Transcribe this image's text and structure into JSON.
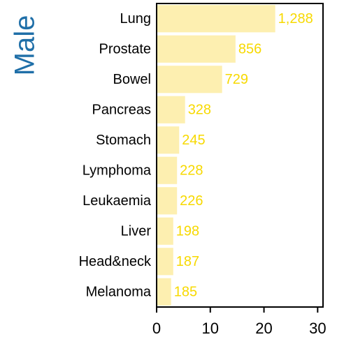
{
  "chart_data": {
    "type": "bar",
    "orientation": "horizontal",
    "y_label": "Male",
    "categories": [
      "Lung",
      "Prostate",
      "Bowel",
      "Pancreas",
      "Stomach",
      "Lymphoma",
      "Leukaemia",
      "Liver",
      "Head&neck",
      "Melanoma"
    ],
    "values": [
      22.1,
      14.7,
      12.2,
      5.3,
      4.2,
      3.8,
      3.8,
      3.1,
      3.1,
      2.7
    ],
    "data_labels": [
      {
        "value": 1288,
        "label": "1,288"
      },
      856,
      729,
      328,
      245,
      228,
      226,
      198,
      187,
      185
    ],
    "color": "#fdefb0",
    "label_color": "#f7d900",
    "y_label_color": "#1f6fa8",
    "xlim": [
      0,
      31
    ],
    "xticks": [
      0,
      10,
      20,
      30
    ]
  }
}
